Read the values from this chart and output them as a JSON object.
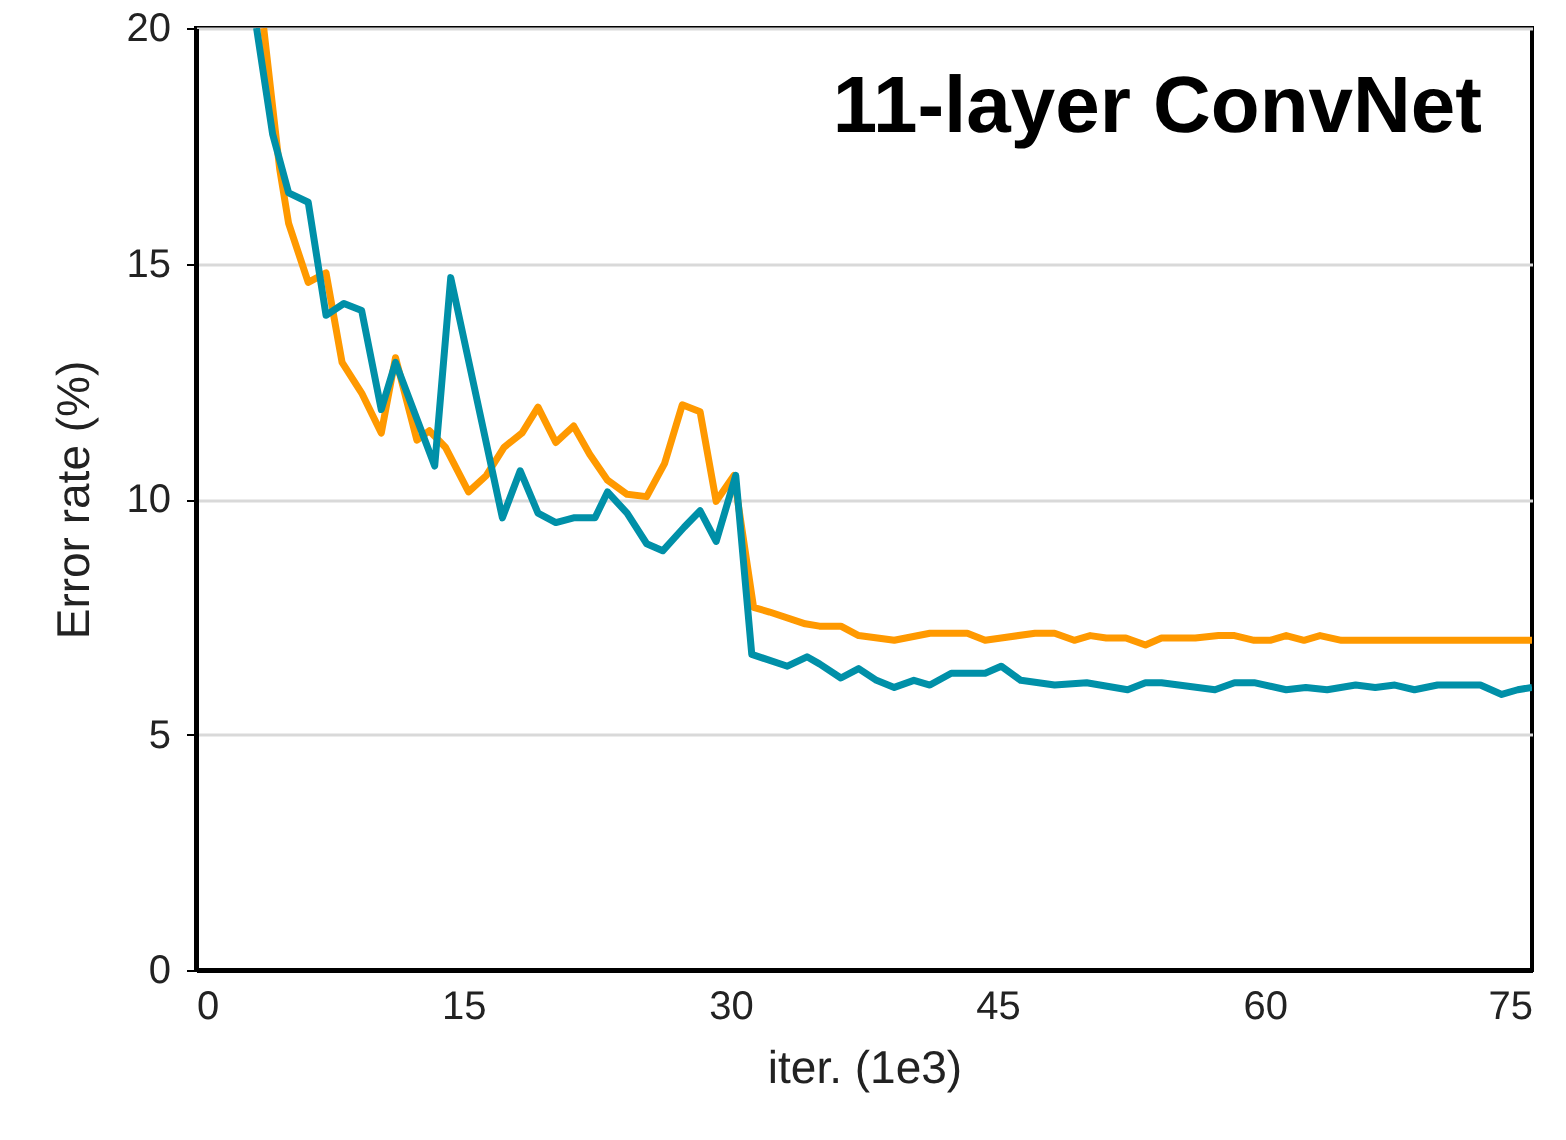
{
  "chart_data": {
    "type": "line",
    "title": "11-layer ConvNet",
    "xlabel": "iter. (1e3)",
    "ylabel": "Error rate (%)",
    "xlim": [
      0,
      75
    ],
    "xticks": [
      0,
      15,
      30,
      45,
      60,
      75
    ],
    "ylim": [
      0,
      20
    ],
    "yticks": [
      0,
      5,
      10,
      15,
      20
    ],
    "grid": "y",
    "marker": "none",
    "line_style": "solid",
    "series": [
      {
        "color": "#ff9900",
        "x": [
          3.8,
          4.7,
          5.2,
          6.3,
          7.3,
          8.2,
          9.3,
          10.4,
          11.2,
          12.4,
          13.1,
          14.0,
          15.3,
          16.3,
          17.3,
          18.3,
          19.2,
          20.2,
          21.2,
          22.1,
          23.1,
          24.2,
          25.3,
          26.3,
          27.3,
          28.3,
          29.2,
          30.2,
          31.3,
          32.2,
          34.2,
          35.0,
          36.2,
          37.2,
          39.2,
          41.2,
          43.3,
          44.3,
          45.2,
          47.1,
          48.2,
          49.3,
          50.2,
          51.1,
          52.2,
          53.3,
          54.2,
          56.1,
          57.4,
          58.3,
          59.4,
          60.3,
          61.2,
          62.2,
          63.1,
          64.3,
          75
        ],
        "values": [
          20,
          17.0,
          15.85,
          14.6,
          14.8,
          12.9,
          12.25,
          11.4,
          13.0,
          11.25,
          11.45,
          11.1,
          10.15,
          10.5,
          11.1,
          11.4,
          11.95,
          11.2,
          11.55,
          10.95,
          10.4,
          10.1,
          10.05,
          10.75,
          12.0,
          11.85,
          9.95,
          10.5,
          7.7,
          7.6,
          7.35,
          7.3,
          7.3,
          7.1,
          7.0,
          7.15,
          7.15,
          7.0,
          7.05,
          7.15,
          7.15,
          7.0,
          7.1,
          7.05,
          7.05,
          6.9,
          7.05,
          7.05,
          7.1,
          7.1,
          7.0,
          7.0,
          7.1,
          7.0,
          7.1,
          7.0,
          7.0
        ]
      },
      {
        "color": "#0090a8",
        "x": [
          3.4,
          4.3,
          5.2,
          6.3,
          7.3,
          8.3,
          9.3,
          10.4,
          11.2,
          13.4,
          14.3,
          17.2,
          18.2,
          19.2,
          20.2,
          21.2,
          22.4,
          23.1,
          24.2,
          25.3,
          26.2,
          27.4,
          28.3,
          29.2,
          30.3,
          31.2,
          33.2,
          34.3,
          35.0,
          36.2,
          37.2,
          38.2,
          39.2,
          40.3,
          41.2,
          42.4,
          44.3,
          45.2,
          46.3,
          48.2,
          50.0,
          52.3,
          53.3,
          54.2,
          57.2,
          58.3,
          59.4,
          61.2,
          62.3,
          63.5,
          65.1,
          66.2,
          67.3,
          68.4,
          69.7,
          71.0,
          72.1,
          73.3,
          74.2,
          75
        ],
        "values": [
          20,
          17.75,
          16.5,
          16.3,
          13.9,
          14.15,
          14.0,
          11.9,
          12.9,
          10.7,
          14.7,
          9.6,
          10.6,
          9.7,
          9.5,
          9.6,
          9.6,
          10.15,
          9.7,
          9.05,
          8.9,
          9.4,
          9.75,
          9.1,
          10.5,
          6.7,
          6.45,
          6.65,
          6.5,
          6.2,
          6.4,
          6.15,
          6.0,
          6.15,
          6.05,
          6.3,
          6.3,
          6.45,
          6.15,
          6.05,
          6.1,
          5.95,
          6.1,
          6.1,
          5.95,
          6.1,
          6.1,
          5.95,
          6.0,
          5.95,
          6.05,
          6.0,
          6.05,
          5.95,
          6.05,
          6.05,
          6.05,
          5.85,
          5.95,
          6.0
        ]
      }
    ]
  }
}
